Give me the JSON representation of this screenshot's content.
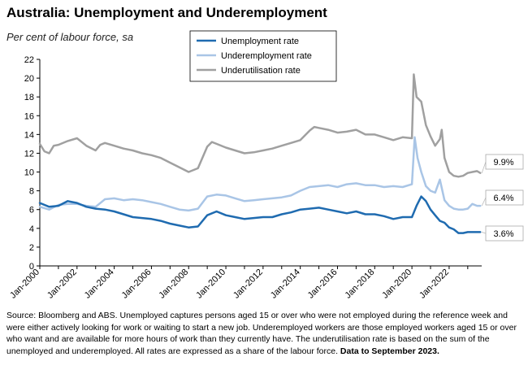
{
  "title": "Australia: Unemployment and Underemployment",
  "subtitle": "Per cent of labour force, sa",
  "source": {
    "text": "Source: Bloomberg and ABS. Unemployed captures persons aged 15 or over who were not employed during the reference week and were either actively looking for work or waiting to start a new job.  Underemployed workers are those employed workers aged 15 or over who want and are available for more hours of work than they currently have.  The underutilisation rate is based on the sum of the unemployed and underemployed. All rates are expressed as a share of the labour force.",
    "bold": "Data to September 2023."
  },
  "chart_data": {
    "type": "line",
    "title": "Australia: Unemployment and Underemployment",
    "ylabel": "Per cent of labour force, sa",
    "ylim": [
      0,
      22
    ],
    "yticks": [
      0,
      2,
      4,
      6,
      8,
      10,
      12,
      14,
      16,
      18,
      20,
      22
    ],
    "xlim": [
      2000.0,
      2023.75
    ],
    "xtick_labels": [
      "Jan-2000",
      "Jan-2002",
      "Jan-2004",
      "Jan-2006",
      "Jan-2008",
      "Jan-2010",
      "Jan-2012",
      "Jan-2014",
      "Jan-2016",
      "Jan-2018",
      "Jan-2020",
      "Jan-2022"
    ],
    "xtick_values": [
      2000,
      2002,
      2004,
      2006,
      2008,
      2010,
      2012,
      2014,
      2016,
      2018,
      2020,
      2022
    ],
    "legend_position": "top-right",
    "series": [
      {
        "name": "Unemployment rate",
        "color": "#1f6bb0",
        "end_label": "3.6%",
        "x": [
          2000.0,
          2000.5,
          2001.0,
          2001.5,
          2002.0,
          2002.5,
          2003.0,
          2003.5,
          2004.0,
          2004.5,
          2005.0,
          2005.5,
          2006.0,
          2006.5,
          2007.0,
          2007.5,
          2008.0,
          2008.5,
          2009.0,
          2009.5,
          2010.0,
          2010.5,
          2011.0,
          2011.5,
          2012.0,
          2012.5,
          2013.0,
          2013.5,
          2014.0,
          2014.5,
          2015.0,
          2015.5,
          2016.0,
          2016.5,
          2017.0,
          2017.5,
          2018.0,
          2018.5,
          2019.0,
          2019.5,
          2020.0,
          2020.25,
          2020.5,
          2020.75,
          2021.0,
          2021.25,
          2021.5,
          2021.75,
          2022.0,
          2022.25,
          2022.5,
          2022.75,
          2023.0,
          2023.25,
          2023.5,
          2023.67
        ],
        "values": [
          6.7,
          6.3,
          6.4,
          6.9,
          6.7,
          6.3,
          6.1,
          6.0,
          5.8,
          5.5,
          5.2,
          5.1,
          5.0,
          4.8,
          4.5,
          4.3,
          4.1,
          4.2,
          5.4,
          5.8,
          5.4,
          5.2,
          5.0,
          5.1,
          5.2,
          5.2,
          5.5,
          5.7,
          6.0,
          6.1,
          6.2,
          6.0,
          5.8,
          5.6,
          5.8,
          5.5,
          5.5,
          5.3,
          5.0,
          5.2,
          5.2,
          6.4,
          7.4,
          6.9,
          6.0,
          5.4,
          4.8,
          4.6,
          4.1,
          3.9,
          3.5,
          3.5,
          3.6,
          3.6,
          3.6,
          3.6
        ]
      },
      {
        "name": "Underemployment rate",
        "color": "#a9c5e6",
        "end_label": "6.4%",
        "x": [
          2000.0,
          2000.5,
          2001.0,
          2001.5,
          2002.0,
          2002.5,
          2003.0,
          2003.5,
          2004.0,
          2004.5,
          2005.0,
          2005.5,
          2006.0,
          2006.5,
          2007.0,
          2007.5,
          2008.0,
          2008.5,
          2009.0,
          2009.5,
          2010.0,
          2010.5,
          2011.0,
          2011.5,
          2012.0,
          2012.5,
          2013.0,
          2013.5,
          2014.0,
          2014.5,
          2015.0,
          2015.5,
          2016.0,
          2016.5,
          2017.0,
          2017.5,
          2018.0,
          2018.5,
          2019.0,
          2019.5,
          2020.0,
          2020.15,
          2020.3,
          2020.5,
          2020.75,
          2021.0,
          2021.25,
          2021.5,
          2021.75,
          2022.0,
          2022.25,
          2022.5,
          2022.75,
          2023.0,
          2023.25,
          2023.5,
          2023.67
        ],
        "values": [
          6.3,
          6.0,
          6.5,
          6.6,
          6.6,
          6.4,
          6.3,
          7.1,
          7.2,
          7.0,
          7.1,
          7.0,
          6.8,
          6.6,
          6.3,
          6.0,
          5.9,
          6.1,
          7.4,
          7.6,
          7.5,
          7.2,
          6.9,
          7.0,
          7.1,
          7.2,
          7.3,
          7.5,
          8.0,
          8.4,
          8.5,
          8.6,
          8.4,
          8.7,
          8.8,
          8.6,
          8.6,
          8.4,
          8.5,
          8.4,
          8.7,
          13.7,
          11.5,
          10.0,
          8.5,
          8.0,
          7.8,
          9.2,
          7.0,
          6.4,
          6.1,
          6.0,
          6.0,
          6.1,
          6.6,
          6.4,
          6.4
        ]
      },
      {
        "name": "Underutilisation rate",
        "color": "#a0a0a0",
        "end_label": "9.9%",
        "x": [
          2000.0,
          2000.25,
          2000.5,
          2000.75,
          2001.0,
          2001.5,
          2002.0,
          2002.5,
          2003.0,
          2003.25,
          2003.5,
          2004.0,
          2004.5,
          2005.0,
          2005.5,
          2006.0,
          2006.5,
          2007.0,
          2007.5,
          2008.0,
          2008.5,
          2009.0,
          2009.25,
          2009.5,
          2010.0,
          2010.5,
          2011.0,
          2011.5,
          2012.0,
          2012.5,
          2013.0,
          2013.5,
          2014.0,
          2014.5,
          2014.75,
          2015.0,
          2015.5,
          2016.0,
          2016.5,
          2017.0,
          2017.5,
          2018.0,
          2018.5,
          2019.0,
          2019.5,
          2020.0,
          2020.1,
          2020.25,
          2020.5,
          2020.75,
          2021.0,
          2021.25,
          2021.5,
          2021.6,
          2021.75,
          2022.0,
          2022.25,
          2022.5,
          2022.75,
          2023.0,
          2023.25,
          2023.5,
          2023.67
        ],
        "values": [
          13.0,
          12.2,
          12.0,
          12.8,
          12.9,
          13.3,
          13.6,
          12.8,
          12.3,
          12.9,
          13.1,
          12.8,
          12.5,
          12.3,
          12.0,
          11.8,
          11.5,
          11.0,
          10.5,
          10.0,
          10.4,
          12.7,
          13.2,
          13.0,
          12.6,
          12.3,
          12.0,
          12.1,
          12.3,
          12.5,
          12.8,
          13.1,
          13.4,
          14.4,
          14.8,
          14.7,
          14.5,
          14.2,
          14.3,
          14.5,
          14.0,
          14.0,
          13.7,
          13.4,
          13.7,
          13.6,
          20.4,
          18.0,
          17.5,
          15.0,
          13.8,
          12.8,
          13.5,
          14.5,
          11.5,
          10.0,
          9.6,
          9.5,
          9.6,
          9.9,
          10.0,
          10.1,
          9.9
        ]
      }
    ]
  }
}
